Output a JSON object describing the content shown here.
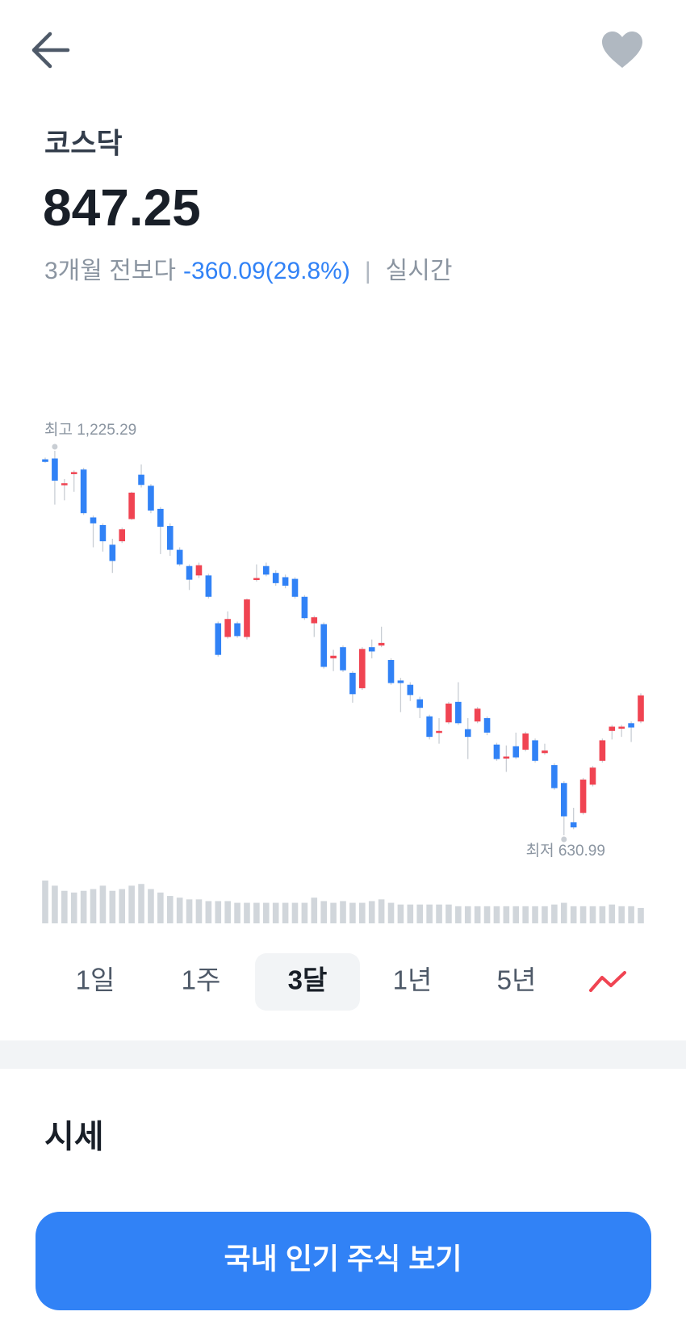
{
  "stock": {
    "name": "코스닥",
    "price": "847.25",
    "change_period": "3개월 전보다",
    "change": "-360.09(29.8%)",
    "separator": "|",
    "status": "실시간"
  },
  "chart_data": {
    "type": "candlestick",
    "high_label": "최고 1,225.29",
    "low_label": "최저 630.99",
    "up_color": "#f04452",
    "down_color": "#3182f6",
    "volume_color": "#d1d6db",
    "open": [
      1212.1,
      1213.4,
      1172.5,
      1189.7,
      1196.3,
      1122.3,
      1110.5,
      1080.1,
      1085.4,
      1119.7,
      1188.3,
      1171.2,
      1135.5,
      1109.1,
      1072.2,
      1047.1,
      1032.6,
      1032.6,
      958.7,
      937.5,
      958.7,
      937.5,
      1026.0,
      1047.1,
      1036.5,
      1029.9,
      1027.3,
      999.6,
      958.7,
      957.3,
      904.5,
      921.7,
      882.1,
      858.3,
      921.7,
      924.3,
      901.9,
      870.2,
      863.6,
      841.2,
      814.8,
      789.7,
      805.5,
      837.2,
      795.0,
      806.9,
      812.1,
      771.2,
      751.4,
      768.6,
      763.3,
      777.8,
      758.0,
      739.5,
      711.8,
      651.1,
      665.6,
      709.2,
      746.1,
      792.3,
      796.3,
      804.2,
      806.9
    ],
    "high": [
      1214.7,
      1225.29,
      1181.7,
      1194.9,
      1198.9,
      1125.0,
      1113.1,
      1089.3,
      1106.5,
      1161.9,
      1204.2,
      1173.8,
      1138.2,
      1113.1,
      1076.1,
      1049.7,
      1052.4,
      1035.2,
      961.3,
      977.1,
      961.3,
      997.0,
      1049.7,
      1052.4,
      1040.5,
      1033.9,
      1029.9,
      1002.2,
      970.5,
      960.0,
      917.7,
      924.3,
      884.7,
      921.7,
      933.6,
      953.4,
      904.5,
      874.2,
      867.6,
      845.1,
      817.4,
      812.1,
      837.2,
      867.6,
      812.1,
      829.3,
      814.8,
      773.9,
      769.9,
      789.7,
      791.0,
      780.5,
      772.5,
      742.2,
      714.5,
      673.5,
      719.7,
      738.2,
      780.5,
      801.6,
      801.6,
      806.9,
      850.4
    ],
    "low": [
      1206.8,
      1142.1,
      1148.7,
      1161.9,
      1126.3,
      1076.1,
      1069.5,
      1036.5,
      1082.7,
      1118.4,
      1168.5,
      1128.9,
      1065.6,
      1062.9,
      1047.1,
      1010.1,
      1028.6,
      997.0,
      907.2,
      934.9,
      936.2,
      933.6,
      1023.3,
      1031.3,
      1016.7,
      1012.8,
      997.0,
      963.9,
      937.5,
      888.7,
      884.7,
      883.4,
      835.9,
      855.7,
      904.5,
      921.7,
      863.6,
      821.4,
      838.5,
      812.1,
      779.1,
      772.5,
      802.9,
      801.6,
      748.8,
      804.2,
      785.7,
      746.1,
      729.0,
      748.8,
      760.7,
      743.5,
      755.4,
      701.3,
      630.99,
      640.5,
      662.9,
      706.5,
      743.5,
      779.1,
      783.1,
      775.2,
      804.2
    ],
    "close": [
      1208.1,
      1179.1,
      1175.1,
      1192.3,
      1128.9,
      1113.1,
      1085.4,
      1055.0,
      1103.9,
      1160.6,
      1172.5,
      1132.9,
      1107.8,
      1072.2,
      1049.7,
      1026.0,
      1048.4,
      999.6,
      909.8,
      965.3,
      938.9,
      995.6,
      1028.6,
      1033.9,
      1020.7,
      1016.7,
      999.6,
      966.6,
      967.9,
      891.3,
      908.5,
      886.0,
      849.1,
      919.0,
      915.1,
      928.3,
      866.3,
      866.3,
      847.8,
      828.0,
      783.1,
      792.3,
      834.6,
      804.2,
      783.1,
      826.7,
      789.7,
      748.8,
      752.7,
      751.4,
      788.4,
      746.1,
      762.0,
      703.9,
      660.3,
      643.2,
      717.1,
      735.6,
      777.8,
      798.9,
      798.9,
      797.6,
      847.25
    ],
    "volume": [
      50,
      44,
      38,
      36,
      38,
      40,
      44,
      38,
      40,
      44,
      46,
      40,
      36,
      32,
      30,
      28,
      28,
      26,
      26,
      26,
      24,
      24,
      24,
      24,
      24,
      24,
      24,
      24,
      30,
      26,
      24,
      26,
      24,
      24,
      26,
      28,
      24,
      22,
      22,
      22,
      22,
      22,
      22,
      20,
      20,
      20,
      20,
      20,
      20,
      20,
      20,
      20,
      20,
      22,
      24,
      20,
      20,
      20,
      20,
      22,
      20,
      20,
      18
    ]
  },
  "periods": {
    "options": [
      "1일",
      "1주",
      "3달",
      "1년",
      "5년"
    ],
    "selected": 2
  },
  "section": {
    "title": "시세"
  },
  "button": {
    "label": "국내 인기 주식 보기"
  }
}
